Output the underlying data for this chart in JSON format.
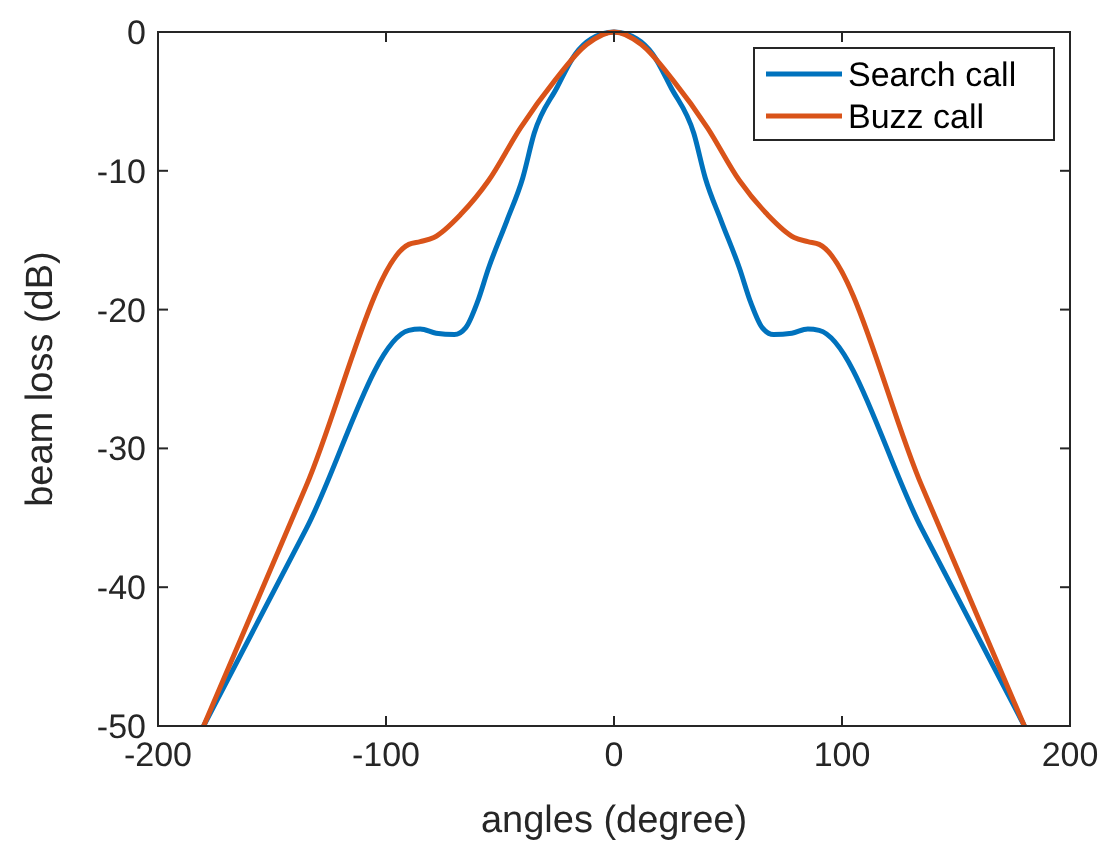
{
  "chart_data": {
    "type": "line",
    "xlabel": "angles (degree)",
    "ylabel": "beam loss (dB)",
    "xlim": [
      -200,
      200
    ],
    "ylim": [
      -50,
      0
    ],
    "xticks": [
      -200,
      -100,
      0,
      100,
      200
    ],
    "yticks": [
      -50,
      -40,
      -30,
      -20,
      -10,
      0
    ],
    "grid": false,
    "legend": "top right",
    "series": [
      {
        "name": "Search call",
        "color": "#0072bd",
        "x": [
          -180,
          -135,
          -90,
          -85,
          -78,
          -70,
          -65,
          -60,
          -55,
          -47,
          -40,
          -35,
          -25,
          -17,
          -10,
          0,
          10,
          17,
          25,
          35,
          40,
          47,
          55,
          60,
          65,
          70,
          78,
          85,
          90,
          135,
          180
        ],
        "values": [
          -50,
          -35.8,
          -21.5,
          -21.4,
          -21.7,
          -21.8,
          -21.3,
          -19.5,
          -17,
          -13.6,
          -10.5,
          -7.3,
          -4,
          -1.6,
          -0.5,
          0,
          -0.5,
          -1.6,
          -4,
          -7.3,
          -10.5,
          -13.6,
          -17,
          -19.5,
          -21.3,
          -21.8,
          -21.7,
          -21.4,
          -21.5,
          -35.8,
          -50
        ]
      },
      {
        "name": "Buzz call",
        "color": "#d95319",
        "x": [
          -180,
          -135,
          -90,
          -85,
          -79,
          -67,
          -55,
          -41,
          -26,
          -12,
          0,
          12,
          26,
          41,
          55,
          67,
          79,
          85,
          90,
          135,
          180
        ],
        "values": [
          -50,
          -32.7,
          -15.3,
          -15.1,
          -14.8,
          -13.1,
          -10.7,
          -6.9,
          -3.5,
          -0.9,
          0,
          -0.9,
          -3.5,
          -6.9,
          -10.7,
          -13.1,
          -14.8,
          -15.1,
          -15.3,
          -32.7,
          -50
        ]
      }
    ]
  }
}
